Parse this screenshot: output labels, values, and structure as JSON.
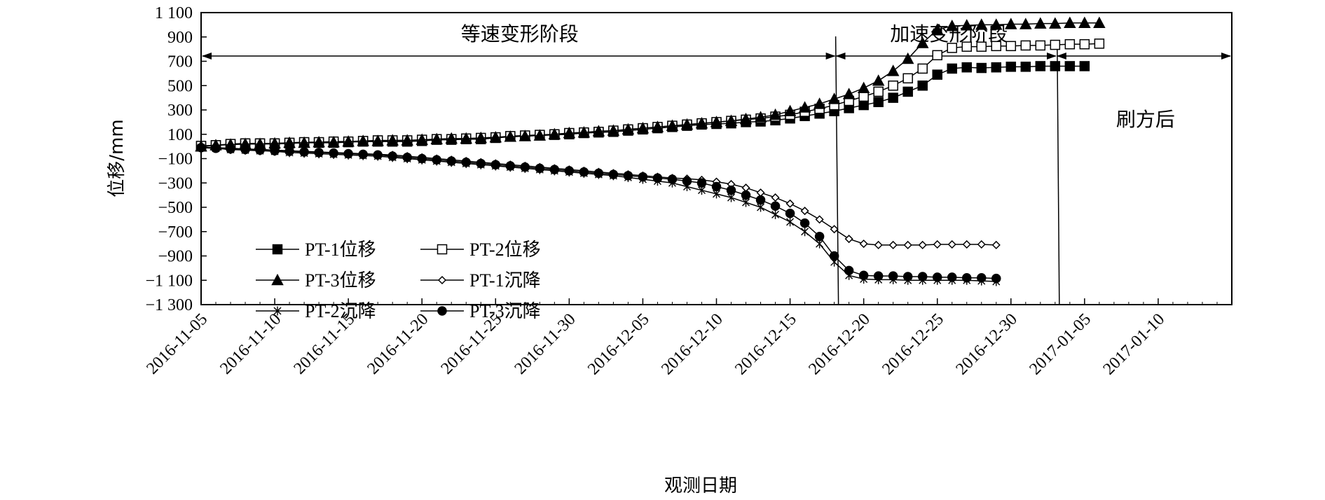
{
  "chart_data": {
    "type": "line",
    "title": "",
    "xlabel": "观测日期",
    "ylabel": "位移/mm",
    "ylim": [
      -1300,
      1100
    ],
    "yticks": [
      -1300,
      -1100,
      -900,
      -700,
      -500,
      -300,
      -100,
      100,
      300,
      500,
      700,
      900,
      1100
    ],
    "ytick_labels": [
      "−1 300",
      "−1 100",
      "−900",
      "−700",
      "−500",
      "−300",
      "−100",
      "100",
      "300",
      "500",
      "700",
      "900",
      "1 100"
    ],
    "x_start": "2016-11-05",
    "x_range_days": [
      0,
      70
    ],
    "xticks_days": [
      0,
      5,
      10,
      15,
      20,
      25,
      30,
      35,
      40,
      45,
      50,
      55,
      60,
      65
    ],
    "xtick_labels": [
      "2016-11-05",
      "2016-11-10",
      "2016-11-15",
      "2016-11-20",
      "2016-11-25",
      "2016-11-30",
      "2016-12-05",
      "2016-12-10",
      "2016-12-15",
      "2016-12-20",
      "2016-12-25",
      "2016-12-30",
      "2017-01-05",
      "2017-01-10"
    ],
    "x_days": [
      0,
      1,
      2,
      3,
      4,
      5,
      6,
      7,
      8,
      9,
      10,
      11,
      12,
      13,
      14,
      15,
      16,
      17,
      18,
      19,
      20,
      21,
      22,
      23,
      24,
      25,
      26,
      27,
      28,
      29,
      30,
      31,
      32,
      33,
      34,
      35,
      36,
      37,
      38,
      39,
      40,
      41,
      42,
      43,
      44,
      45,
      46,
      47,
      48,
      49,
      50,
      51,
      52,
      53,
      54,
      55,
      56,
      57,
      58,
      59,
      60,
      61,
      62,
      63,
      64,
      65,
      66,
      67,
      68,
      69
    ],
    "phases": [
      {
        "label": "等速变形阶段",
        "start_day": 0,
        "end_day": 43
      },
      {
        "label": "加速变形阶段",
        "start_day": 43,
        "end_day": 58
      },
      {
        "label": "刷方后",
        "start_day": 58,
        "end_day": 70
      }
    ],
    "phase_divider_days": [
      43,
      58
    ],
    "series": [
      {
        "name": "PT-1位移",
        "marker": "square-filled",
        "values": [
          0,
          10,
          15,
          20,
          20,
          20,
          25,
          30,
          30,
          30,
          35,
          40,
          40,
          40,
          40,
          45,
          55,
          55,
          60,
          60,
          70,
          80,
          85,
          90,
          95,
          100,
          110,
          115,
          120,
          130,
          140,
          150,
          160,
          170,
          180,
          185,
          190,
          200,
          205,
          215,
          230,
          250,
          270,
          290,
          315,
          340,
          365,
          400,
          450,
          500,
          590,
          640,
          650,
          645,
          650,
          655,
          655,
          660,
          660,
          660,
          660
        ]
      },
      {
        "name": "PT-2位移",
        "marker": "square-open",
        "values": [
          5,
          10,
          20,
          25,
          25,
          25,
          30,
          35,
          35,
          40,
          40,
          45,
          50,
          50,
          50,
          55,
          60,
          60,
          65,
          70,
          75,
          85,
          90,
          95,
          100,
          110,
          115,
          120,
          130,
          140,
          150,
          160,
          170,
          180,
          190,
          200,
          210,
          220,
          230,
          245,
          260,
          285,
          310,
          340,
          375,
          410,
          450,
          500,
          560,
          640,
          750,
          810,
          820,
          820,
          825,
          825,
          830,
          830,
          835,
          840,
          840,
          845
        ]
      },
      {
        "name": "PT-3位移",
        "marker": "triangle-filled",
        "values": [
          0,
          10,
          15,
          20,
          20,
          25,
          30,
          30,
          35,
          35,
          40,
          45,
          45,
          50,
          50,
          55,
          60,
          65,
          65,
          70,
          75,
          80,
          85,
          90,
          100,
          110,
          115,
          125,
          130,
          140,
          150,
          160,
          170,
          180,
          190,
          200,
          210,
          225,
          240,
          260,
          290,
          320,
          350,
          390,
          430,
          480,
          540,
          620,
          720,
          850,
          960,
          990,
          995,
          1000,
          1000,
          1005,
          1005,
          1010,
          1010,
          1015,
          1015,
          1015
        ]
      },
      {
        "name": "PT-1沉降",
        "marker": "diamond-open",
        "values": [
          -5,
          -10,
          -15,
          -20,
          -25,
          -30,
          -35,
          -40,
          -45,
          -50,
          -55,
          -60,
          -65,
          -70,
          -80,
          -90,
          -100,
          -110,
          -120,
          -130,
          -140,
          -150,
          -160,
          -170,
          -180,
          -190,
          -200,
          -210,
          -220,
          -230,
          -240,
          -250,
          -260,
          -265,
          -275,
          -290,
          -310,
          -340,
          -380,
          -420,
          -470,
          -530,
          -600,
          -680,
          -760,
          -800,
          -810,
          -810,
          -810,
          -810,
          -805,
          -805,
          -805,
          -805,
          -810
        ]
      },
      {
        "name": "PT-2沉降",
        "marker": "asterisk",
        "values": [
          -10,
          -15,
          -25,
          -30,
          -35,
          -40,
          -50,
          -55,
          -60,
          -65,
          -70,
          -75,
          -80,
          -90,
          -100,
          -110,
          -120,
          -130,
          -140,
          -150,
          -160,
          -170,
          -180,
          -190,
          -200,
          -210,
          -220,
          -230,
          -240,
          -255,
          -270,
          -285,
          -300,
          -330,
          -360,
          -390,
          -420,
          -460,
          -500,
          -560,
          -620,
          -700,
          -800,
          -950,
          -1060,
          -1090,
          -1095,
          -1095,
          -1100,
          -1100,
          -1100,
          -1100,
          -1100,
          -1105,
          -1110
        ]
      },
      {
        "name": "PT-3沉降",
        "marker": "circle-filled",
        "values": [
          -10,
          -15,
          -20,
          -25,
          -30,
          -35,
          -40,
          -45,
          -50,
          -55,
          -60,
          -65,
          -70,
          -80,
          -90,
          -100,
          -110,
          -120,
          -130,
          -140,
          -150,
          -160,
          -170,
          -180,
          -190,
          -200,
          -210,
          -220,
          -230,
          -240,
          -250,
          -260,
          -270,
          -285,
          -300,
          -330,
          -360,
          -400,
          -440,
          -490,
          -550,
          -630,
          -740,
          -900,
          -1020,
          -1060,
          -1065,
          -1065,
          -1070,
          -1070,
          -1075,
          -1075,
          -1080,
          -1080,
          -1085
        ]
      }
    ],
    "legend_position": "center-left",
    "grid": false
  }
}
